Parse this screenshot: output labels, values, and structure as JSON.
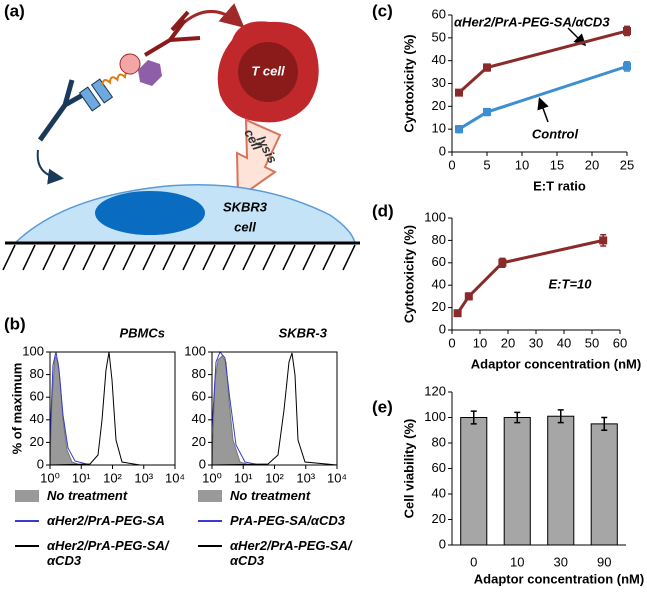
{
  "panel_labels": [
    "(a)",
    "(b)",
    "(c)",
    "(d)",
    "(e)"
  ],
  "schematic": {
    "t_cell": "T cell",
    "lysis_1": "cell",
    "lysis_2": "lysis",
    "target_1": "SKBR3",
    "target_2": "cell"
  },
  "chart_data": [
    {
      "type": "histogram",
      "title": "PBMCs",
      "ylabel": "% of maximum",
      "xlog": true,
      "xlim": [
        1,
        10000
      ],
      "xticks": [
        {
          "value": 1,
          "label": "10⁰"
        },
        {
          "value": 10,
          "label": "10¹"
        },
        {
          "value": 100,
          "label": "10²"
        },
        {
          "value": 1000,
          "label": "10³"
        },
        {
          "value": 10000,
          "label": "10⁴"
        }
      ],
      "ylim": [
        0,
        100
      ],
      "yticks": [
        0,
        20,
        40,
        60,
        80,
        100
      ],
      "series": [
        {
          "name": "No treatment",
          "color": "#999999",
          "fill": true
        },
        {
          "name": "αHer2/PrA-PEG-SA",
          "color": "#3a3acc"
        },
        {
          "name": "αHer2/PrA-PEG-SA/αCD3",
          "color": "#000000"
        }
      ]
    },
    {
      "type": "histogram",
      "title": "SKBR-3",
      "xlog": true,
      "xlim": [
        1,
        10000
      ],
      "xticks": [
        {
          "value": 1,
          "label": "10⁰"
        },
        {
          "value": 10,
          "label": "10¹"
        },
        {
          "value": 100,
          "label": "10²"
        },
        {
          "value": 1000,
          "label": "10³"
        },
        {
          "value": 10000,
          "label": "10⁴"
        }
      ],
      "ylim": [
        0,
        100
      ],
      "yticks": [
        0,
        20,
        40,
        60,
        80,
        100
      ],
      "series": [
        {
          "name": "No treatment",
          "color": "#999999",
          "fill": true
        },
        {
          "name": "PrA-PEG-SA/αCD3",
          "color": "#3a3acc"
        },
        {
          "name": "αHer2/PrA-PEG-SA/αCD3",
          "color": "#000000"
        }
      ]
    },
    {
      "type": "line",
      "xlabel": "E:T ratio",
      "ylabel": "Cytotoxicity (%)",
      "x": [
        1,
        5,
        25
      ],
      "xlim": [
        0,
        25
      ],
      "xticks": [
        0,
        5,
        10,
        15,
        20,
        25
      ],
      "ylim": [
        0,
        60
      ],
      "yticks": [
        0,
        10,
        20,
        30,
        40,
        50,
        60
      ],
      "series": [
        {
          "name": "αHer2/PrA-PEG-SA/αCD3",
          "color": "#8b2a2a",
          "values": [
            26,
            37,
            53
          ],
          "errors": [
            1,
            1.5,
            2
          ]
        },
        {
          "name": "Control",
          "color": "#3d8fd1",
          "values": [
            10,
            17.5,
            37.5
          ],
          "errors": [
            1.5,
            1.5,
            2
          ]
        }
      ]
    },
    {
      "type": "line",
      "xlabel": "Adaptor concentration (nM)",
      "ylabel": "Cytotoxicity (%)",
      "annotation": "E:T=10",
      "x": [
        2,
        6,
        18,
        54
      ],
      "xlim": [
        0,
        60
      ],
      "xticks": [
        0,
        10,
        20,
        30,
        40,
        50,
        60
      ],
      "ylim": [
        0,
        100
      ],
      "yticks": [
        0,
        20,
        40,
        60,
        80,
        100
      ],
      "series": [
        {
          "color": "#8b2a2a",
          "values": [
            15,
            30,
            60,
            80
          ],
          "errors": [
            2,
            3,
            4,
            5
          ]
        }
      ]
    },
    {
      "type": "bar",
      "xlabel": "Adaptor concentration (nM)",
      "ylabel": "Cell viability (%)",
      "categories": [
        "0",
        "10",
        "30",
        "90"
      ],
      "values": [
        100,
        100,
        101,
        95
      ],
      "errors": [
        5,
        4,
        5,
        5
      ],
      "color": "#a6a6a6",
      "ylim": [
        0,
        120
      ],
      "yticks": [
        0,
        20,
        40,
        60,
        80,
        100,
        120
      ]
    }
  ]
}
